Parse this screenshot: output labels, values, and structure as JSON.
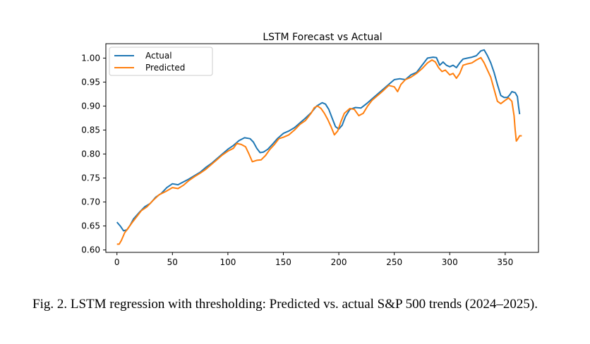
{
  "chart_data": {
    "type": "line",
    "title": "LSTM Forecast vs Actual",
    "xlabel": "",
    "ylabel": "",
    "xlim": [
      -10,
      380
    ],
    "ylim": [
      0.595,
      1.03
    ],
    "xticks": [
      0,
      50,
      100,
      150,
      200,
      250,
      300,
      350
    ],
    "yticks": [
      0.6,
      0.65,
      0.7,
      0.75,
      0.8,
      0.85,
      0.9,
      0.95,
      1.0
    ],
    "xtick_labels": [
      "0",
      "50",
      "100",
      "150",
      "200",
      "250",
      "300",
      "350"
    ],
    "ytick_labels": [
      "0.60",
      "0.65",
      "0.70",
      "0.75",
      "0.80",
      "0.85",
      "0.90",
      "0.95",
      "1.00"
    ],
    "grid": false,
    "legend_position": "top-left",
    "series": [
      {
        "name": "Actual",
        "color": "#1f77b4",
        "points": [
          [
            0,
            0.658
          ],
          [
            3,
            0.65
          ],
          [
            6,
            0.64
          ],
          [
            9,
            0.642
          ],
          [
            12,
            0.652
          ],
          [
            15,
            0.665
          ],
          [
            20,
            0.678
          ],
          [
            25,
            0.69
          ],
          [
            30,
            0.697
          ],
          [
            35,
            0.71
          ],
          [
            40,
            0.718
          ],
          [
            45,
            0.73
          ],
          [
            50,
            0.738
          ],
          [
            55,
            0.736
          ],
          [
            60,
            0.742
          ],
          [
            65,
            0.748
          ],
          [
            70,
            0.755
          ],
          [
            75,
            0.762
          ],
          [
            80,
            0.772
          ],
          [
            85,
            0.78
          ],
          [
            90,
            0.79
          ],
          [
            95,
            0.8
          ],
          [
            100,
            0.81
          ],
          [
            105,
            0.818
          ],
          [
            110,
            0.828
          ],
          [
            115,
            0.834
          ],
          [
            120,
            0.832
          ],
          [
            123,
            0.825
          ],
          [
            126,
            0.812
          ],
          [
            129,
            0.803
          ],
          [
            132,
            0.804
          ],
          [
            136,
            0.81
          ],
          [
            140,
            0.82
          ],
          [
            145,
            0.833
          ],
          [
            150,
            0.843
          ],
          [
            155,
            0.848
          ],
          [
            160,
            0.855
          ],
          [
            165,
            0.865
          ],
          [
            170,
            0.875
          ],
          [
            175,
            0.886
          ],
          [
            180,
            0.9
          ],
          [
            185,
            0.907
          ],
          [
            188,
            0.904
          ],
          [
            191,
            0.893
          ],
          [
            194,
            0.875
          ],
          [
            197,
            0.857
          ],
          [
            200,
            0.852
          ],
          [
            203,
            0.86
          ],
          [
            206,
            0.878
          ],
          [
            210,
            0.893
          ],
          [
            215,
            0.897
          ],
          [
            220,
            0.896
          ],
          [
            225,
            0.905
          ],
          [
            230,
            0.915
          ],
          [
            235,
            0.925
          ],
          [
            240,
            0.935
          ],
          [
            245,
            0.945
          ],
          [
            250,
            0.955
          ],
          [
            255,
            0.957
          ],
          [
            260,
            0.955
          ],
          [
            265,
            0.965
          ],
          [
            270,
            0.97
          ],
          [
            275,
            0.985
          ],
          [
            280,
            1.0
          ],
          [
            285,
            1.002
          ],
          [
            288,
            1.001
          ],
          [
            291,
            0.985
          ],
          [
            294,
            0.992
          ],
          [
            297,
            0.985
          ],
          [
            300,
            0.982
          ],
          [
            303,
            0.985
          ],
          [
            306,
            0.98
          ],
          [
            309,
            0.99
          ],
          [
            312,
            0.998
          ],
          [
            316,
            1.0
          ],
          [
            320,
            1.002
          ],
          [
            324,
            1.005
          ],
          [
            328,
            1.015
          ],
          [
            331,
            1.017
          ],
          [
            334,
            1.005
          ],
          [
            337,
            0.99
          ],
          [
            340,
            0.97
          ],
          [
            343,
            0.945
          ],
          [
            346,
            0.922
          ],
          [
            349,
            0.918
          ],
          [
            352,
            0.918
          ],
          [
            354,
            0.923
          ],
          [
            356,
            0.93
          ],
          [
            359,
            0.928
          ],
          [
            361,
            0.92
          ],
          [
            362,
            0.9
          ],
          [
            363,
            0.883
          ]
        ]
      },
      {
        "name": "Predicted",
        "color": "#ff7f0e",
        "points": [
          [
            0,
            0.612
          ],
          [
            2,
            0.612
          ],
          [
            4,
            0.62
          ],
          [
            7,
            0.636
          ],
          [
            10,
            0.645
          ],
          [
            14,
            0.658
          ],
          [
            18,
            0.67
          ],
          [
            22,
            0.682
          ],
          [
            27,
            0.69
          ],
          [
            32,
            0.702
          ],
          [
            38,
            0.715
          ],
          [
            44,
            0.722
          ],
          [
            50,
            0.73
          ],
          [
            55,
            0.728
          ],
          [
            60,
            0.735
          ],
          [
            65,
            0.745
          ],
          [
            70,
            0.753
          ],
          [
            75,
            0.76
          ],
          [
            80,
            0.768
          ],
          [
            85,
            0.778
          ],
          [
            90,
            0.788
          ],
          [
            95,
            0.798
          ],
          [
            100,
            0.806
          ],
          [
            105,
            0.812
          ],
          [
            108,
            0.822
          ],
          [
            112,
            0.82
          ],
          [
            116,
            0.815
          ],
          [
            119,
            0.8
          ],
          [
            122,
            0.784
          ],
          [
            126,
            0.787
          ],
          [
            130,
            0.788
          ],
          [
            134,
            0.797
          ],
          [
            138,
            0.81
          ],
          [
            142,
            0.82
          ],
          [
            146,
            0.832
          ],
          [
            150,
            0.835
          ],
          [
            155,
            0.84
          ],
          [
            160,
            0.85
          ],
          [
            165,
            0.862
          ],
          [
            170,
            0.87
          ],
          [
            175,
            0.885
          ],
          [
            178,
            0.897
          ],
          [
            181,
            0.9
          ],
          [
            184,
            0.895
          ],
          [
            187,
            0.885
          ],
          [
            190,
            0.872
          ],
          [
            193,
            0.857
          ],
          [
            196,
            0.84
          ],
          [
            199,
            0.848
          ],
          [
            202,
            0.868
          ],
          [
            205,
            0.885
          ],
          [
            210,
            0.895
          ],
          [
            214,
            0.893
          ],
          [
            218,
            0.88
          ],
          [
            222,
            0.885
          ],
          [
            226,
            0.9
          ],
          [
            230,
            0.912
          ],
          [
            235,
            0.922
          ],
          [
            240,
            0.932
          ],
          [
            245,
            0.943
          ],
          [
            250,
            0.94
          ],
          [
            253,
            0.93
          ],
          [
            256,
            0.945
          ],
          [
            260,
            0.955
          ],
          [
            265,
            0.96
          ],
          [
            270,
            0.968
          ],
          [
            275,
            0.978
          ],
          [
            280,
            0.99
          ],
          [
            284,
            0.996
          ],
          [
            287,
            0.992
          ],
          [
            290,
            0.98
          ],
          [
            293,
            0.972
          ],
          [
            296,
            0.975
          ],
          [
            300,
            0.965
          ],
          [
            303,
            0.968
          ],
          [
            306,
            0.958
          ],
          [
            309,
            0.968
          ],
          [
            312,
            0.985
          ],
          [
            316,
            0.988
          ],
          [
            320,
            0.99
          ],
          [
            324,
            0.996
          ],
          [
            328,
            1.001
          ],
          [
            331,
            0.99
          ],
          [
            334,
            0.975
          ],
          [
            337,
            0.96
          ],
          [
            340,
            0.935
          ],
          [
            343,
            0.91
          ],
          [
            346,
            0.905
          ],
          [
            350,
            0.912
          ],
          [
            353,
            0.917
          ],
          [
            356,
            0.91
          ],
          [
            358,
            0.88
          ],
          [
            359,
            0.85
          ],
          [
            360,
            0.827
          ],
          [
            361,
            0.83
          ],
          [
            363,
            0.838
          ],
          [
            365,
            0.838
          ]
        ]
      }
    ]
  },
  "caption": "Fig. 2.  LSTM regression with thresholding: Predicted vs. actual S&P 500 trends (2024–2025)."
}
